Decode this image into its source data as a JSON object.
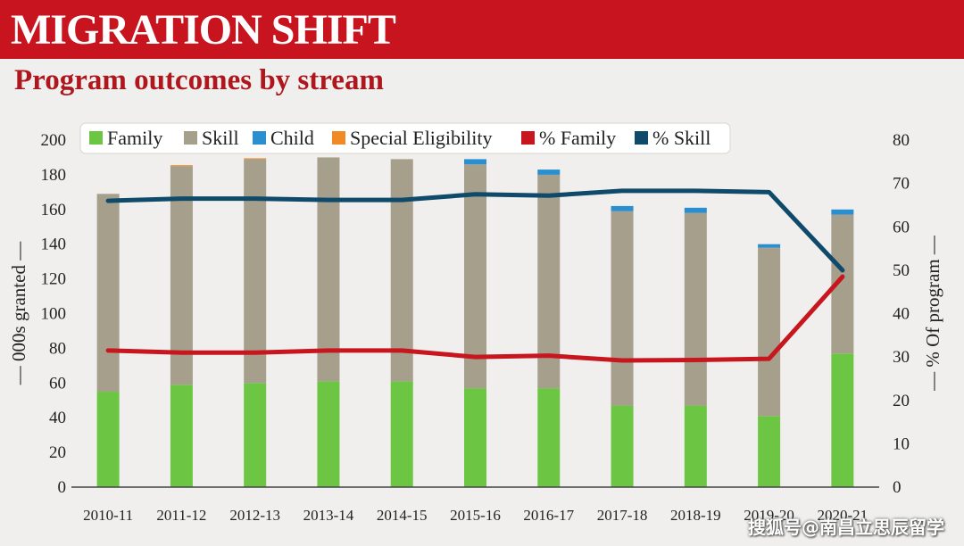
{
  "header": {
    "title": "MIGRATION SHIFT",
    "subtitle": "Program outcomes by stream"
  },
  "watermark": "搜狐号@南昌立思辰留学",
  "chart_data": {
    "type": "bar",
    "stacked": true,
    "categories": [
      "2010-11",
      "2011-12",
      "2012-13",
      "2013-14",
      "2014-15",
      "2015-16",
      "2016-17",
      "2017-18",
      "2018-19",
      "2019-20",
      "2020-21"
    ],
    "series": [
      {
        "name": "Family",
        "axis": "left",
        "color": "#6cc644",
        "values": [
          55,
          59,
          60,
          61,
          61,
          57,
          57,
          47,
          47,
          41,
          77
        ]
      },
      {
        "name": "Skill",
        "axis": "left",
        "color": "#a59f8c",
        "values": [
          114,
          126,
          129,
          129,
          128,
          129,
          123,
          112,
          111,
          97,
          80
        ]
      },
      {
        "name": "Child",
        "axis": "left",
        "color": "#2a8fd0",
        "values": [
          0,
          0,
          0,
          0,
          0,
          3,
          3,
          3,
          3,
          2,
          3
        ]
      },
      {
        "name": "Special Eligibility",
        "axis": "left",
        "color": "#f08a24",
        "values": [
          0,
          0.5,
          0.5,
          0,
          0,
          0,
          0,
          0,
          0,
          0,
          0
        ]
      }
    ],
    "line_series": [
      {
        "name": "% Family",
        "axis": "right",
        "color": "#c8161e",
        "values": [
          31.5,
          31,
          31,
          31.5,
          31.5,
          30,
          30.3,
          29.2,
          29.3,
          29.6,
          48.5
        ]
      },
      {
        "name": "% Skill",
        "axis": "right",
        "color": "#0f4a6b",
        "values": [
          66,
          66.5,
          66.5,
          66.2,
          66.2,
          67.5,
          67.2,
          68.3,
          68.3,
          68,
          50
        ]
      }
    ],
    "ylabel": "— 000s granted —",
    "y2label": "— % Of program —",
    "ylim": [
      0,
      200
    ],
    "y2lim": [
      0,
      80
    ],
    "yticks": [
      0,
      20,
      40,
      60,
      80,
      100,
      120,
      140,
      160,
      180,
      200
    ],
    "y2ticks": [
      0,
      10,
      20,
      30,
      40,
      50,
      60,
      70,
      80
    ],
    "legend": {
      "position": "top-center",
      "entries": [
        "Family",
        "Skill",
        "Child",
        "Special Eligibility",
        "% Family",
        "% Skill"
      ]
    },
    "grid": false
  }
}
